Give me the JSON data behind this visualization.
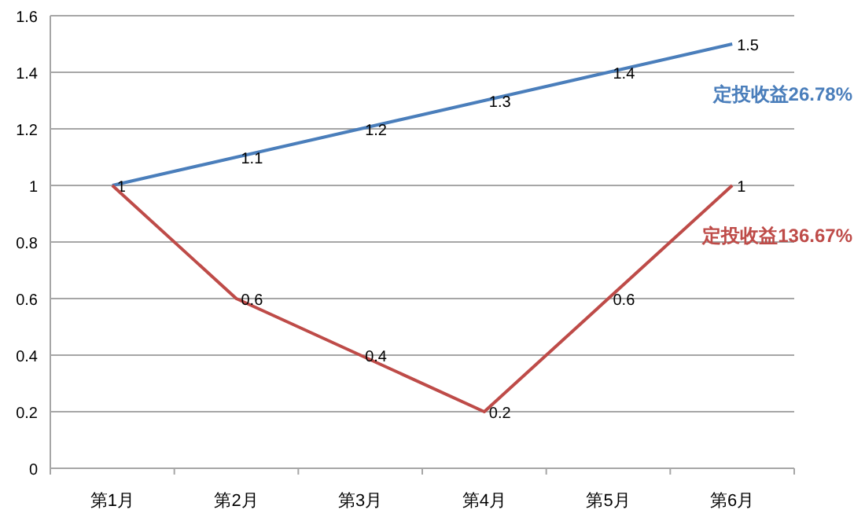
{
  "chart_data": {
    "type": "line",
    "categories": [
      "第1月",
      "第2月",
      "第3月",
      "第4月",
      "第5月",
      "第6月"
    ],
    "series": [
      {
        "name": "定投收益26.78%",
        "color": "#4a7ebb",
        "values": [
          1,
          1.1,
          1.2,
          1.3,
          1.4,
          1.5
        ],
        "value_labels": [
          "1",
          "1.1",
          "1.2",
          "1.3",
          "1.4",
          "1.5"
        ]
      },
      {
        "name": "定投收益136.67%",
        "color": "#be4b48",
        "values": [
          1,
          0.6,
          0.4,
          0.2,
          0.6,
          1
        ],
        "value_labels": [
          null,
          "0.6",
          "0.4",
          "0.2",
          "0.6",
          "1"
        ]
      }
    ],
    "ylim": [
      0,
      1.6
    ],
    "yticks": [
      0,
      0.2,
      0.4,
      0.6,
      0.8,
      1,
      1.2,
      1.4,
      1.6
    ],
    "grid": "y",
    "marker": "none",
    "line_style": "solid"
  }
}
